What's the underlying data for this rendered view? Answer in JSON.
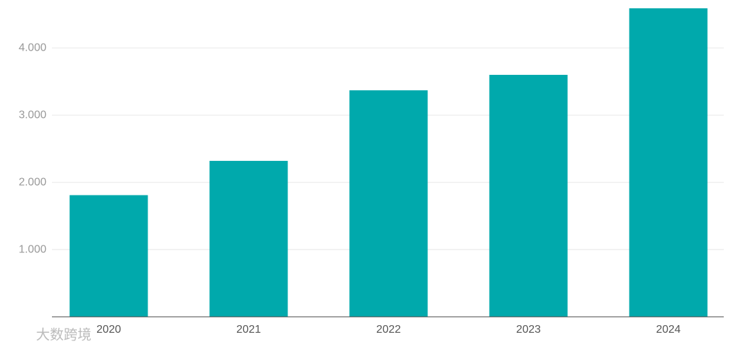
{
  "chart_data": {
    "type": "bar",
    "categories": [
      "2020",
      "2021",
      "2022",
      "2023",
      "2024"
    ],
    "values": [
      1810,
      2320,
      3370,
      3600,
      4590
    ],
    "color": "#00a9ac",
    "ylim": [
      0,
      4600
    ],
    "yticks": [
      {
        "value": 1000,
        "label": "1.000"
      },
      {
        "value": 2000,
        "label": "2.000"
      },
      {
        "value": 3000,
        "label": "3.000"
      },
      {
        "value": 4000,
        "label": "4.000"
      }
    ],
    "grid": true
  },
  "watermark": "大数跨境"
}
